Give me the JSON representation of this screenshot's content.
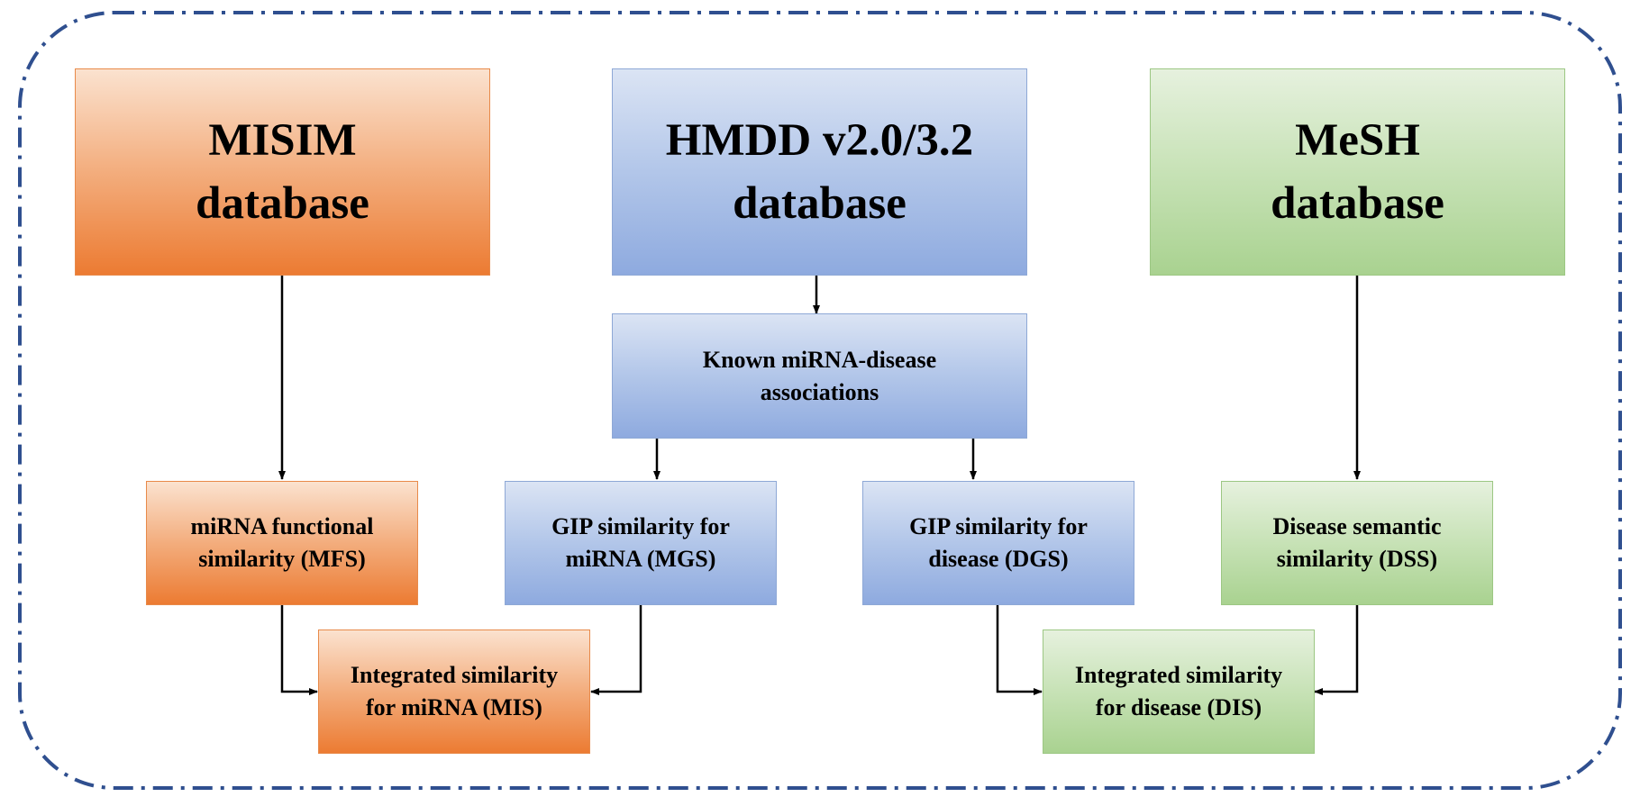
{
  "boxes": {
    "misim": {
      "line1": "MISIM",
      "line2": "database"
    },
    "hmdd": {
      "line1": "HMDD v2.0/3.2",
      "line2": "database"
    },
    "mesh": {
      "line1": "MeSH",
      "line2": "database"
    },
    "known": {
      "line1": "Known miRNA-disease",
      "line2": "associations"
    },
    "mfs": {
      "line1": "miRNA functional",
      "line2": "similarity (MFS)"
    },
    "mgs": {
      "line1": "GIP similarity for",
      "line2": "miRNA (MGS)"
    },
    "dgs": {
      "line1": "GIP similarity for",
      "line2": "disease (DGS)"
    },
    "dss": {
      "line1": "Disease semantic",
      "line2": "similarity (DSS)"
    },
    "mis": {
      "line1": "Integrated similarity",
      "line2": "for miRNA (MIS)"
    },
    "dis": {
      "line1": "Integrated similarity",
      "line2": "for disease (DIS)"
    }
  },
  "colors": {
    "frame": "#2f4f8f",
    "arrow": "#000000",
    "orange": "#ec7b32",
    "blue": "#8eaadf",
    "green": "#a9d290"
  }
}
